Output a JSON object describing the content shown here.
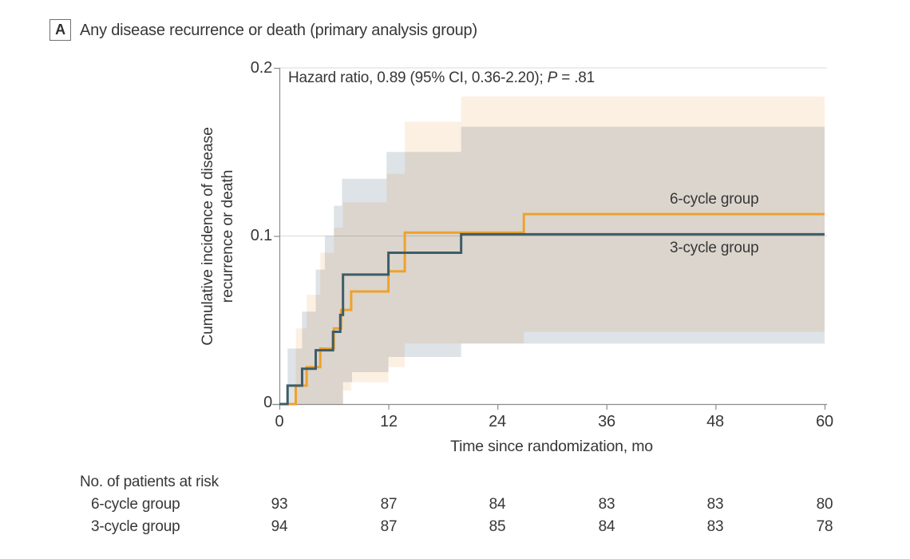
{
  "panel": {
    "label": "A",
    "title": "Any disease recurrence or death (primary analysis group)"
  },
  "annotation": {
    "text_before_p": "Hazard ratio, 0.89 (95% CI, 0.36-2.20); ",
    "p": "P",
    "text_after_p": " = .81"
  },
  "y_axis": {
    "title_line1": "Cumulative incidence of disease",
    "title_line2": "recurrence or death",
    "ticks": [
      "0",
      "0.1",
      "0.2"
    ]
  },
  "x_axis": {
    "title": "Time since randomization, mo",
    "ticks": [
      "0",
      "12",
      "24",
      "36",
      "48",
      "60"
    ]
  },
  "legend": {
    "six_cycle": "6-cycle group",
    "three_cycle": "3-cycle group"
  },
  "risk_table": {
    "header": "No. of patients at risk",
    "rows": [
      {
        "label": "6-cycle group",
        "counts": [
          93,
          87,
          84,
          83,
          83,
          80
        ]
      },
      {
        "label": "3-cycle group",
        "counts": [
          94,
          87,
          85,
          84,
          83,
          78
        ]
      }
    ]
  },
  "colors": {
    "orange_line": "#EEA22D",
    "slate_line": "#3E5C69",
    "orange_band": "#FCF0E3",
    "blue_band": "#DEE3E7",
    "grid": "#D8D8D8",
    "axis": "#8C8C8C",
    "text": "#373737"
  },
  "chart_data": {
    "type": "line",
    "subtype": "step-cumulative-incidence",
    "title": "Any disease recurrence or death (primary analysis group)",
    "xlabel": "Time since randomization, mo",
    "ylabel": "Cumulative incidence of disease recurrence or death",
    "xlim": [
      0,
      60
    ],
    "ylim": [
      0,
      0.2
    ],
    "x_ticks": [
      0,
      12,
      24,
      36,
      48,
      60
    ],
    "y_ticks": [
      0,
      0.1,
      0.2
    ],
    "grid": "horizontal",
    "legend_position": "inline-right",
    "annotation": "Hazard ratio, 0.89 (95% CI, 0.36-2.20); P = .81",
    "hazard_ratio": {
      "value": 0.89,
      "ci_low": 0.36,
      "ci_high": 2.2,
      "p": 0.81
    },
    "series": [
      {
        "name": "6-cycle group",
        "color": "#EEA22D",
        "points": [
          [
            0,
            0
          ],
          [
            1.8,
            0.011
          ],
          [
            3,
            0.022
          ],
          [
            4.5,
            0.033
          ],
          [
            6,
            0.045
          ],
          [
            6.8,
            0.056
          ],
          [
            7.9,
            0.067
          ],
          [
            12,
            0.079
          ],
          [
            13.8,
            0.102
          ],
          [
            26.9,
            0.113
          ],
          [
            60,
            0.113
          ]
        ],
        "ci_upper": [
          [
            0,
            0
          ],
          [
            1.8,
            0.045
          ],
          [
            3,
            0.065
          ],
          [
            4.5,
            0.09
          ],
          [
            6,
            0.105
          ],
          [
            7,
            0.12
          ],
          [
            11.8,
            0.137
          ],
          [
            13.8,
            0.168
          ],
          [
            20,
            0.183
          ],
          [
            60,
            0.183
          ]
        ],
        "ci_lower": [
          [
            0,
            0
          ],
          [
            7,
            0.008
          ],
          [
            7.9,
            0.013
          ],
          [
            12,
            0.022
          ],
          [
            13.8,
            0.036
          ],
          [
            26.9,
            0.043
          ],
          [
            60,
            0.043
          ]
        ]
      },
      {
        "name": "3-cycle group",
        "color": "#3E5C69",
        "points": [
          [
            0,
            0
          ],
          [
            0.9,
            0.011
          ],
          [
            2.5,
            0.021
          ],
          [
            4,
            0.032
          ],
          [
            5.9,
            0.043
          ],
          [
            6.7,
            0.053
          ],
          [
            7,
            0.077
          ],
          [
            12,
            0.09
          ],
          [
            20,
            0.101
          ],
          [
            60,
            0.101
          ]
        ],
        "ci_upper": [
          [
            0,
            0
          ],
          [
            0.9,
            0.033
          ],
          [
            2.5,
            0.055
          ],
          [
            4,
            0.08
          ],
          [
            5,
            0.1
          ],
          [
            6,
            0.118
          ],
          [
            6.9,
            0.134
          ],
          [
            11.8,
            0.15
          ],
          [
            20,
            0.165
          ],
          [
            60,
            0.165
          ]
        ],
        "ci_lower": [
          [
            0,
            0
          ],
          [
            7,
            0.013
          ],
          [
            8,
            0.019
          ],
          [
            12,
            0.028
          ],
          [
            20,
            0.036
          ],
          [
            60,
            0.036
          ]
        ]
      }
    ],
    "at_risk": {
      "times": [
        0,
        12,
        24,
        36,
        48,
        60
      ],
      "6-cycle group": [
        93,
        87,
        84,
        83,
        83,
        80
      ],
      "3-cycle group": [
        94,
        87,
        85,
        84,
        83,
        78
      ]
    }
  }
}
